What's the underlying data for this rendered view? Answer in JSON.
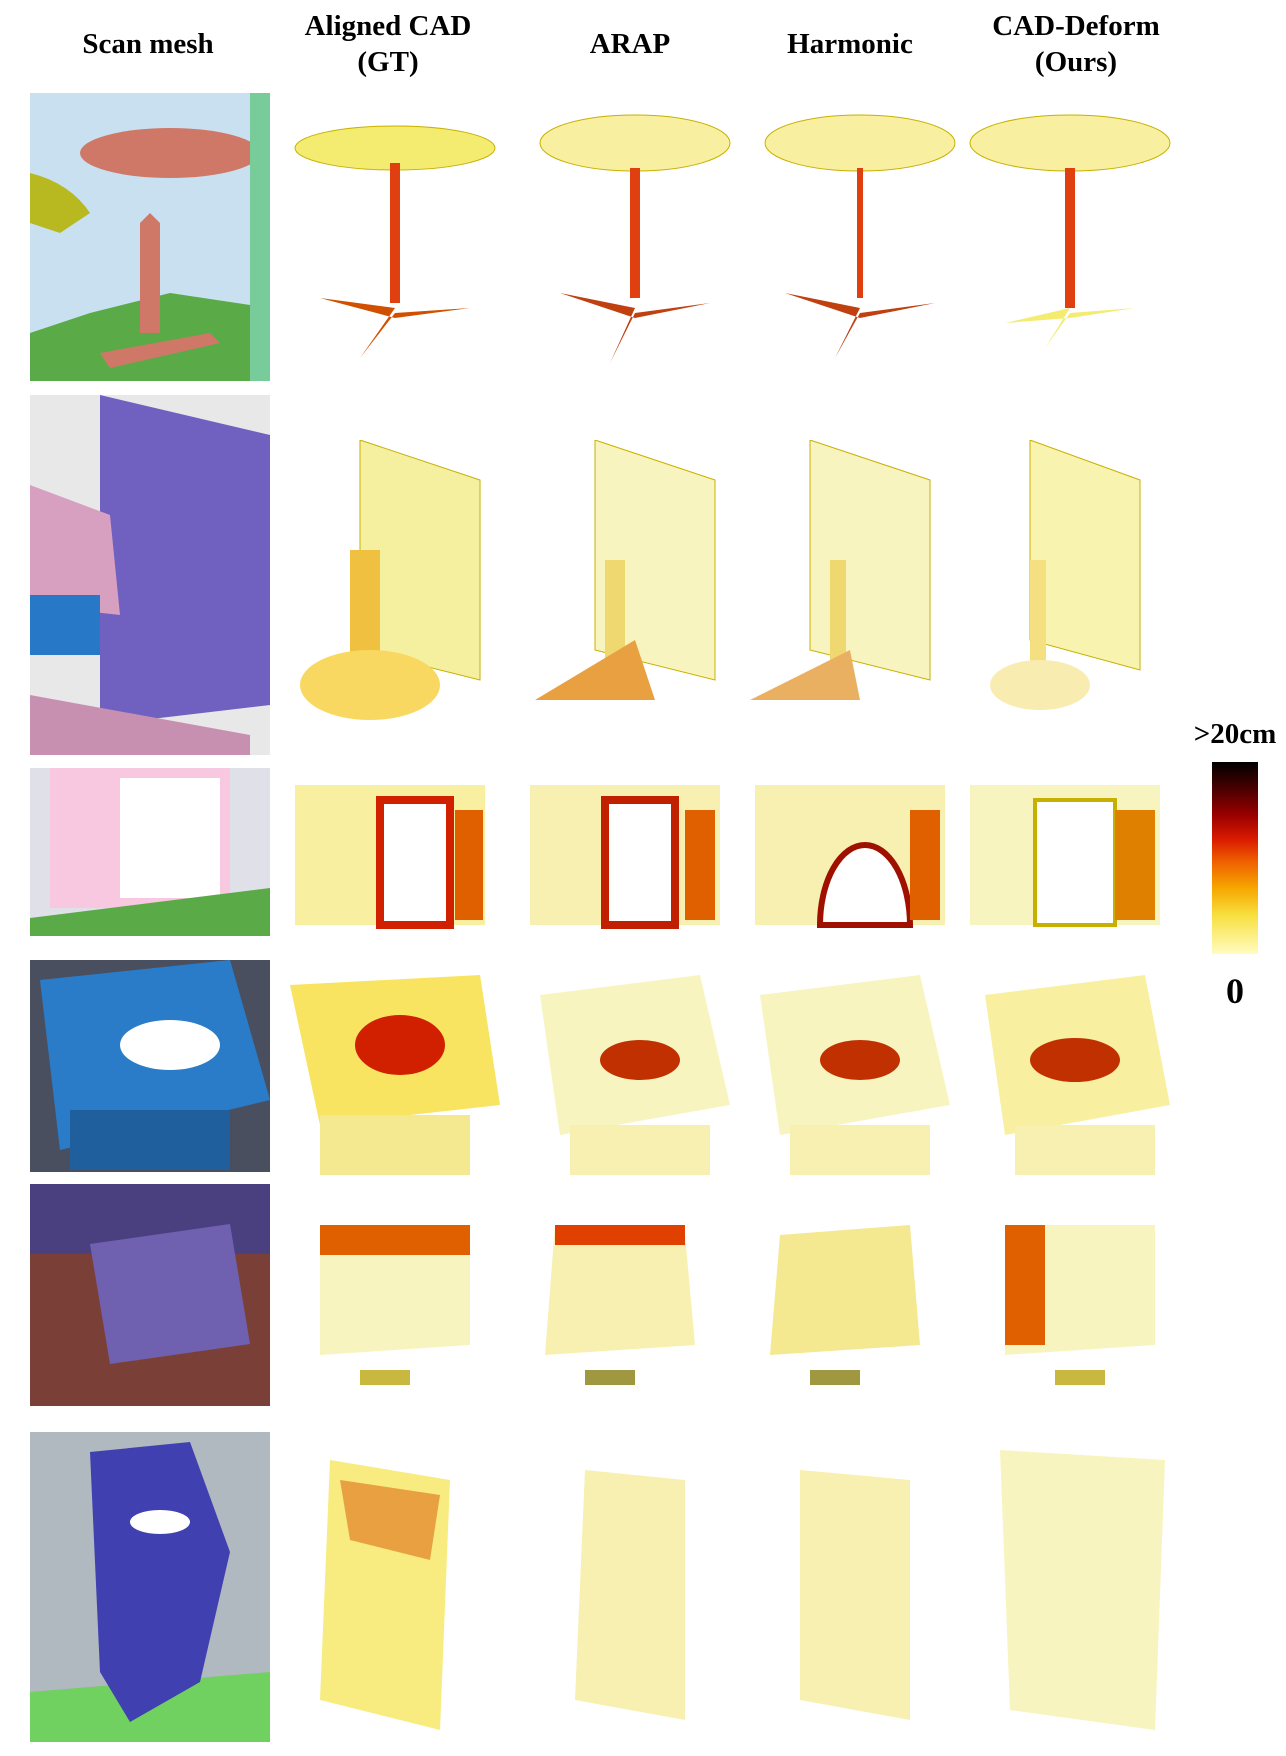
{
  "headers": {
    "scan": "Scan mesh",
    "gt": "Aligned CAD\n(GT)",
    "arap": "ARAP",
    "harmonic": "Harmonic",
    "ours": "CAD-Deform\n(Ours)"
  },
  "colorbar": {
    "max_label": ">20cm",
    "min_label": "0"
  },
  "colors": {
    "error_low": "#fff9a8",
    "error_mid": "#f0a000",
    "error_high": "#c00000",
    "error_max": "#000000",
    "points": "#3a56e8"
  }
}
